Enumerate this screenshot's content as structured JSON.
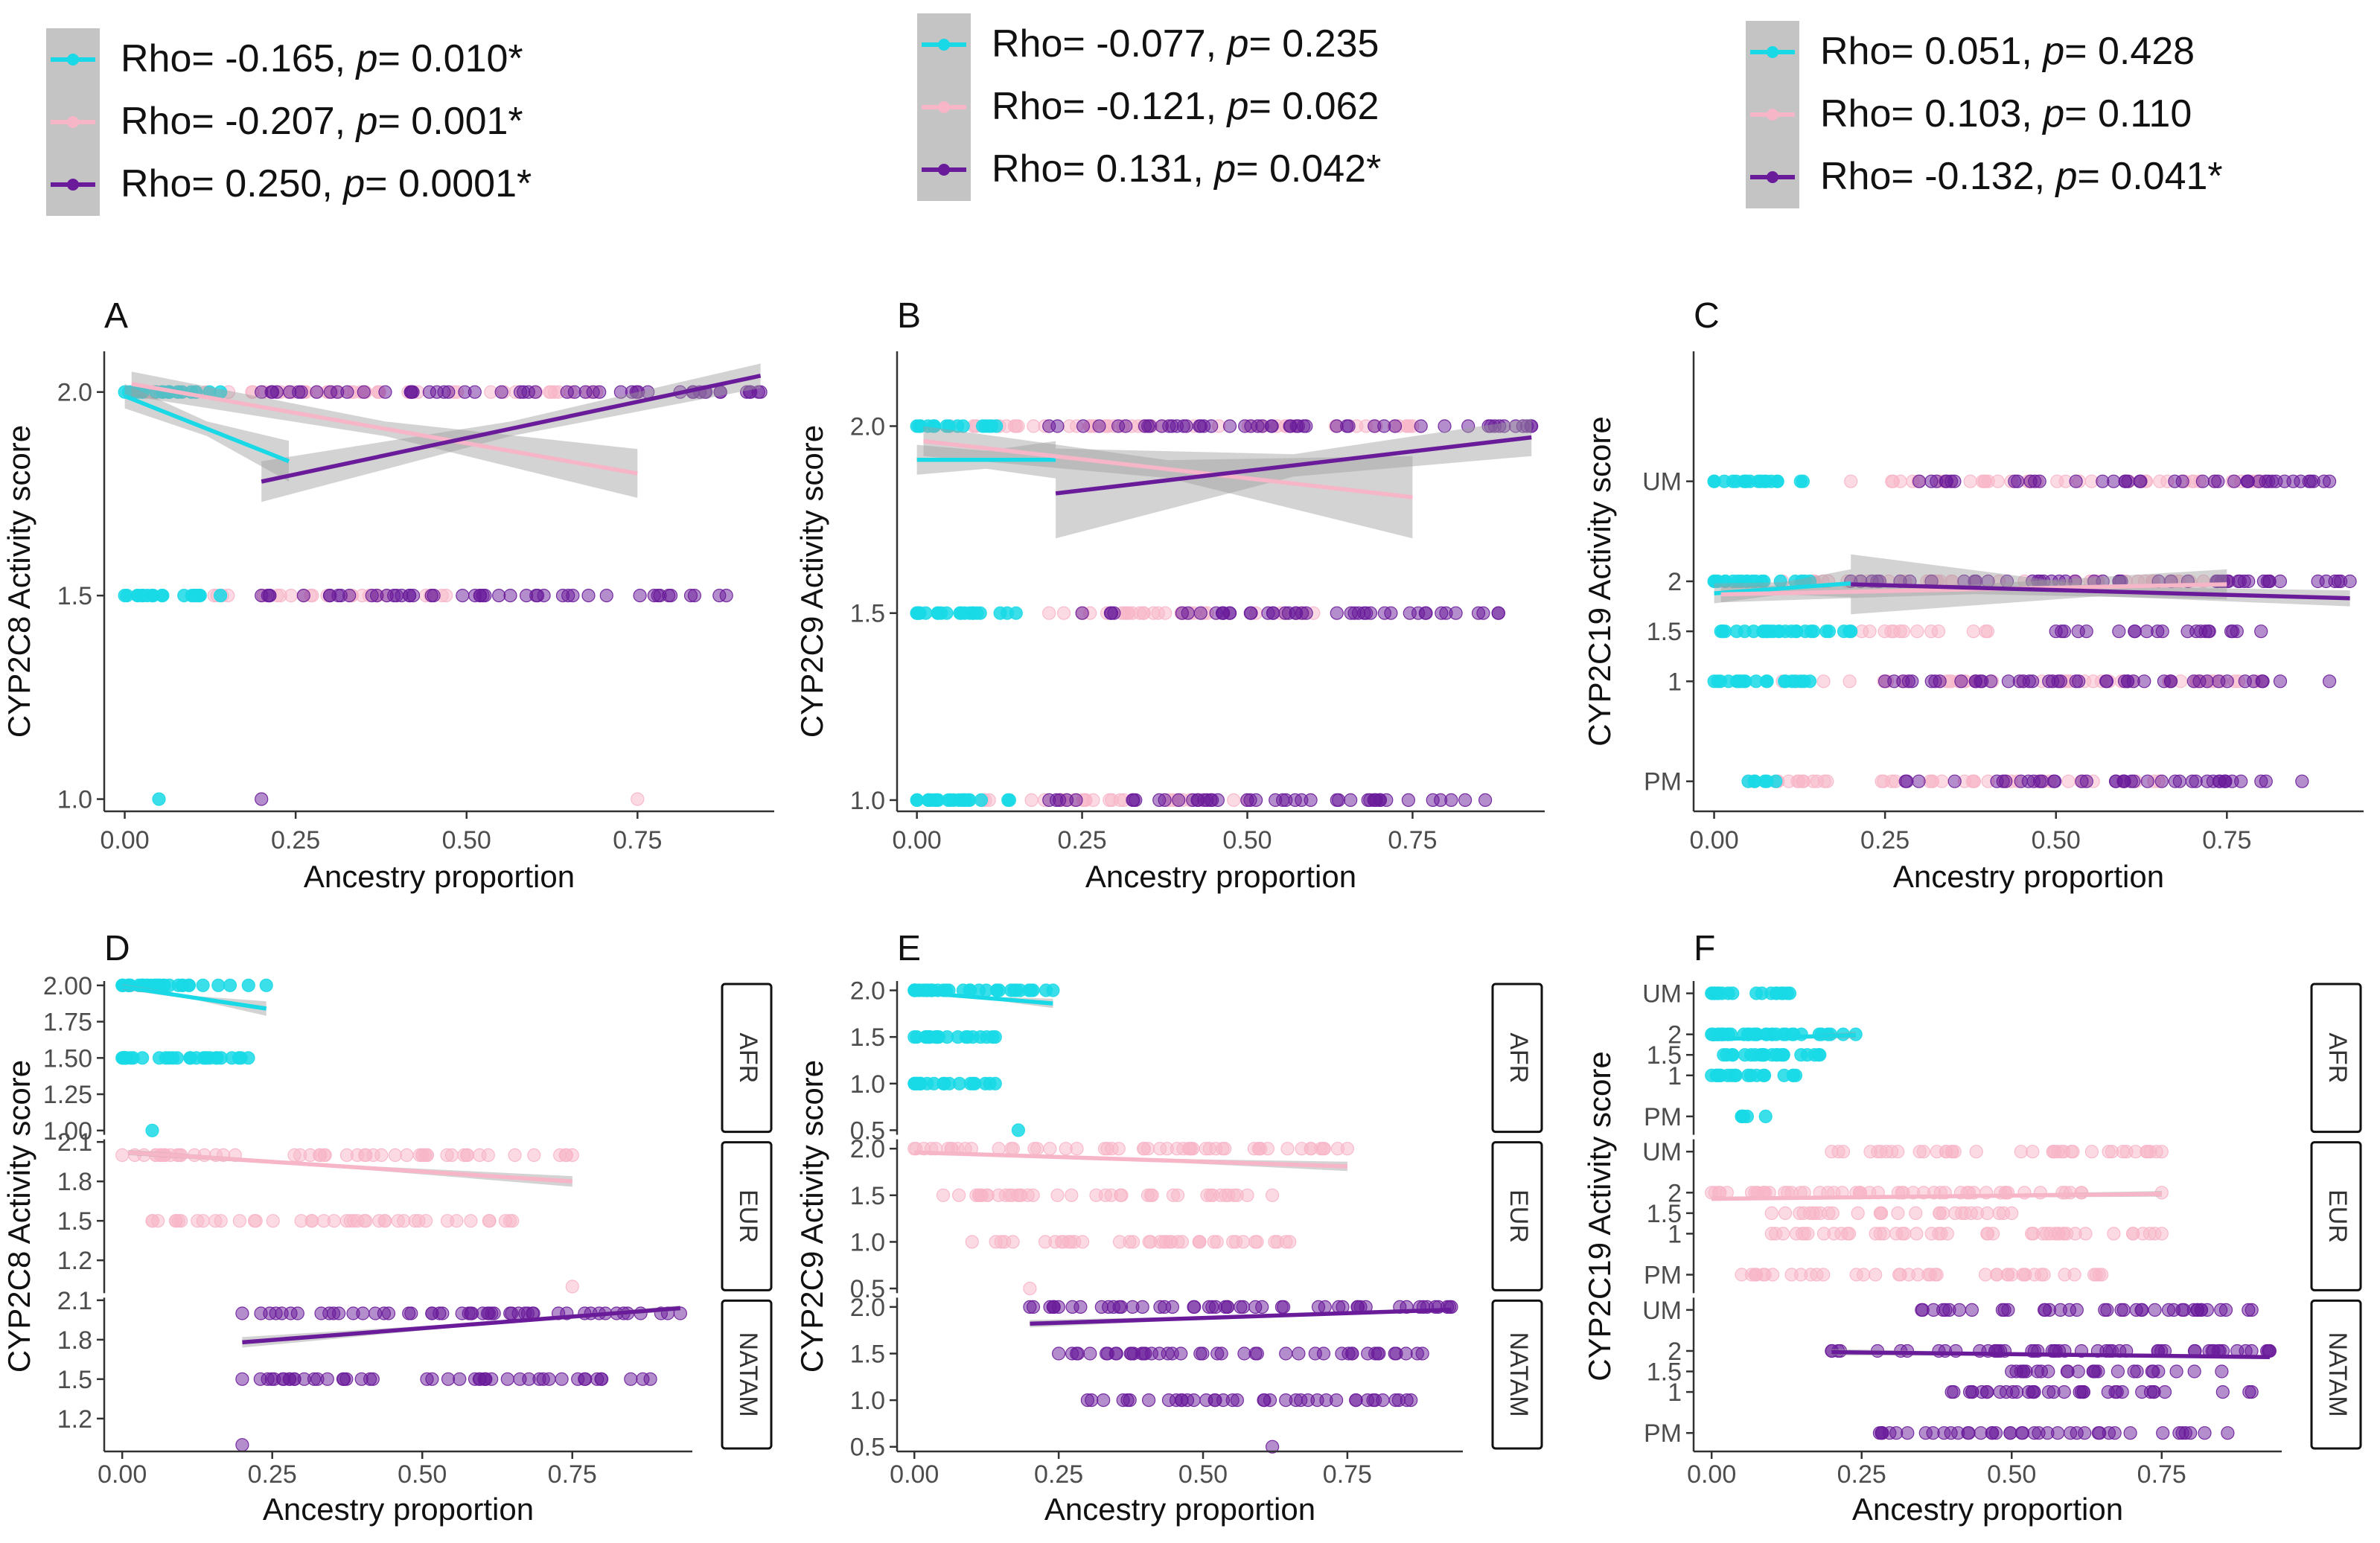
{
  "colors": {
    "afr": "#19d9e6",
    "eur": "#f7b5c8",
    "natam": "#6a1b9a",
    "band": "#c4c4c4",
    "axis": "#333333",
    "tick": "#4d4d4d"
  },
  "legends": [
    {
      "entries": [
        {
          "series": "AFR",
          "prefix": "Rho= -0.165, ",
          "p_label": "p",
          "suffix": "= 0.010*"
        },
        {
          "series": "EUR",
          "prefix": "Rho= -0.207, ",
          "p_label": "p",
          "suffix": "= 0.001*"
        },
        {
          "series": "NATAM",
          "prefix": "Rho= 0.250, ",
          "p_label": "p",
          "suffix": "= 0.0001*"
        }
      ]
    },
    {
      "entries": [
        {
          "series": "AFR",
          "prefix": "Rho= -0.077, ",
          "p_label": "p",
          "suffix": "= 0.235"
        },
        {
          "series": "EUR",
          "prefix": "Rho= -0.121, ",
          "p_label": "p",
          "suffix": "= 0.062"
        },
        {
          "series": "NATAM",
          "prefix": "Rho= 0.131, ",
          "p_label": "p",
          "suffix": "= 0.042*"
        }
      ]
    },
    {
      "entries": [
        {
          "series": "AFR",
          "prefix": "Rho= 0.051, ",
          "p_label": "p",
          "suffix": "= 0.428"
        },
        {
          "series": "EUR",
          "prefix": "Rho= 0.103, ",
          "p_label": "p",
          "suffix": "= 0.110"
        },
        {
          "series": "NATAM",
          "prefix": "Rho= -0.132, ",
          "p_label": "p",
          "suffix": "= 0.041*"
        }
      ]
    }
  ],
  "chart_data": [
    {
      "panel": "A",
      "type": "scatter",
      "xlabel": "Ancestry proportion",
      "ylabel": "CYP2C8 Activity score",
      "xlim": [
        -0.03,
        0.95
      ],
      "xticks": [
        0,
        0.25,
        0.5,
        0.75
      ],
      "xtick_labels": [
        "0.00",
        "0.25",
        "0.50",
        "0.75"
      ],
      "ylim": [
        0.97,
        2.1
      ],
      "yticks": [
        1.0,
        1.5,
        2.0
      ],
      "ytick_labels": [
        "1.0",
        "1.5",
        "2.0"
      ],
      "points": {
        "AFR": {
          "2.0": [
            0,
            0.14
          ],
          "1.5": [
            0,
            0.14
          ],
          "1.0": [
            0.05
          ]
        },
        "EUR": {
          "2.0": [
            0.03,
            0.75
          ],
          "1.5": [
            0.1,
            0.47
          ],
          "1.0": [
            0.75
          ]
        },
        "NATAM": {
          "2.0": [
            0.2,
            0.93
          ],
          "1.5": [
            0.2,
            0.88
          ],
          "1.0": [
            0.2
          ]
        }
      },
      "fits": [
        {
          "series": "AFR",
          "x": [
            0,
            0.24
          ],
          "y": [
            1.99,
            1.83
          ],
          "band": [
            0.03,
            0.05
          ]
        },
        {
          "series": "EUR",
          "x": [
            0.01,
            0.75
          ],
          "y": [
            2.02,
            1.8
          ],
          "band": [
            0.03,
            0.06
          ]
        },
        {
          "series": "NATAM",
          "x": [
            0.2,
            0.93
          ],
          "y": [
            1.78,
            2.04
          ],
          "band": [
            0.05,
            0.03
          ]
        }
      ]
    },
    {
      "panel": "B",
      "type": "scatter",
      "xlabel": "Ancestry proportion",
      "ylabel": "CYP2C9 Activity score",
      "xlim": [
        -0.03,
        0.95
      ],
      "xticks": [
        0,
        0.25,
        0.5,
        0.75
      ],
      "xtick_labels": [
        "0.00",
        "0.25",
        "0.50",
        "0.75"
      ],
      "ylim": [
        0.97,
        2.2
      ],
      "yticks": [
        1.0,
        1.5,
        2.0
      ],
      "ytick_labels": [
        "1.0",
        "1.5",
        "2.0"
      ],
      "points": {
        "AFR": {
          "2.0": [
            0,
            0.12
          ],
          "1.5": [
            0,
            0.15
          ],
          "1.0": [
            0,
            0.14
          ]
        },
        "EUR": {
          "2.0": [
            0.05,
            0.75
          ],
          "1.5": [
            0.2,
            0.6
          ],
          "1.0": [
            0.1,
            0.5
          ]
        },
        "NATAM": {
          "2.0": [
            0.2,
            0.93
          ],
          "1.5": [
            0.25,
            0.88
          ],
          "1.0": [
            0.2,
            0.86
          ]
        }
      },
      "fits": [
        {
          "series": "AFR",
          "x": [
            0,
            0.21
          ],
          "y": [
            1.91,
            1.91
          ],
          "band": [
            0.04,
            0.05
          ]
        },
        {
          "series": "EUR",
          "x": [
            0.01,
            0.75
          ],
          "y": [
            1.96,
            1.81
          ],
          "band": [
            0.04,
            0.11
          ]
        },
        {
          "series": "NATAM",
          "x": [
            0.21,
            0.93
          ],
          "y": [
            1.82,
            1.97
          ],
          "band": [
            0.12,
            0.05
          ]
        }
      ]
    },
    {
      "panel": "C",
      "type": "scatter",
      "xlabel": "Ancestry proportion",
      "ylabel": "CYP2C19 Activity score",
      "xlim": [
        -0.03,
        0.95
      ],
      "xticks": [
        0,
        0.25,
        0.5,
        0.75
      ],
      "xtick_labels": [
        "0.00",
        "0.25",
        "0.50",
        "0.75"
      ],
      "ylim": [
        -0.3,
        4.3
      ],
      "yticks": [
        0,
        1,
        1.5,
        2,
        3
      ],
      "ytick_labels": [
        "PM",
        "1",
        "1.5",
        "2",
        "UM"
      ],
      "points": {
        "AFR": {
          "3": [
            0,
            0.13
          ],
          "2": [
            0,
            0.14
          ],
          "1.5": [
            0.01,
            0.2
          ],
          "1": [
            0,
            0.14
          ],
          "0": [
            0.05,
            0.09
          ]
        },
        "EUR": {
          "3": [
            0.2,
            0.8
          ],
          "2": [
            0.1,
            0.75
          ],
          "1.5": [
            0.2,
            0.4
          ],
          "1": [
            0.1,
            0.8
          ],
          "0": [
            0.05,
            0.65
          ]
        },
        "NATAM": {
          "3": [
            0.3,
            0.9
          ],
          "2": [
            0.2,
            0.93
          ],
          "1.5": [
            0.5,
            0.8
          ],
          "1": [
            0.25,
            0.9
          ],
          "0": [
            0.28,
            0.86
          ]
        }
      },
      "fits": [
        {
          "series": "AFR",
          "x": [
            0,
            0.2
          ],
          "y": [
            1.88,
            1.98
          ],
          "band": [
            0.1,
            0.14
          ]
        },
        {
          "series": "EUR",
          "x": [
            0.01,
            0.75
          ],
          "y": [
            1.87,
            1.97
          ],
          "band": [
            0.08,
            0.15
          ]
        },
        {
          "series": "NATAM",
          "x": [
            0.2,
            0.93
          ],
          "y": [
            1.97,
            1.83
          ],
          "band": [
            0.3,
            0.08
          ]
        }
      ]
    },
    {
      "panel": "D",
      "type": "scatter",
      "xlabel": "Ancestry proportion",
      "ylabel": "CYP2C8 Activity score",
      "xlim": [
        -0.03,
        0.95
      ],
      "xticks": [
        0,
        0.25,
        0.5,
        0.75
      ],
      "xtick_labels": [
        "0.00",
        "0.25",
        "0.50",
        "0.75"
      ],
      "facets": [
        {
          "strip": "AFR",
          "ylim": [
            0.97,
            2.03
          ],
          "yticks": [
            1.0,
            1.25,
            1.5,
            1.75,
            2.0
          ],
          "ytick_labels": [
            "1.00",
            "1.25",
            "1.50",
            "1.75",
            "2.00"
          ],
          "points": {
            "AFR": {
              "2.0": [
                0,
                0.24
              ],
              "1.5": [
                0,
                0.21
              ],
              "1.0": [
                0.05
              ]
            }
          },
          "fits": [
            {
              "series": "AFR",
              "x": [
                0,
                0.24
              ],
              "y": [
                1.99,
                1.84
              ],
              "band": [
                0.02,
                0.05
              ]
            }
          ]
        },
        {
          "strip": "EUR",
          "ylim": [
            0.95,
            2.12
          ],
          "yticks": [
            1.2,
            1.5,
            1.8,
            2.1
          ],
          "ytick_labels": [
            "1.2",
            "1.5",
            "1.8",
            "2.1"
          ],
          "points": {
            "EUR": {
              "2.0": [
                0,
                0.75
              ],
              "1.5": [
                0.05,
                0.65
              ],
              "1.0": [
                0.75
              ]
            }
          },
          "fits": [
            {
              "series": "EUR",
              "x": [
                0.01,
                0.75
              ],
              "y": [
                2.02,
                1.8
              ],
              "band": [
                0.02,
                0.04
              ]
            }
          ]
        },
        {
          "strip": "NATAM",
          "ylim": [
            0.95,
            2.12
          ],
          "yticks": [
            1.2,
            1.5,
            1.8,
            2.1
          ],
          "ytick_labels": [
            "1.2",
            "1.5",
            "1.8",
            "2.1"
          ],
          "points": {
            "NATAM": {
              "2.0": [
                0.2,
                0.93
              ],
              "1.5": [
                0.2,
                0.88
              ],
              "1.0": [
                0.2
              ]
            }
          },
          "fits": [
            {
              "series": "NATAM",
              "x": [
                0.2,
                0.93
              ],
              "y": [
                1.78,
                2.04
              ],
              "band": [
                0.04,
                0.02
              ]
            }
          ]
        }
      ]
    },
    {
      "panel": "E",
      "type": "scatter",
      "xlabel": "Ancestry proportion",
      "ylabel": "CYP2C9 Activity score",
      "xlim": [
        -0.03,
        0.95
      ],
      "xticks": [
        0,
        0.25,
        0.5,
        0.75
      ],
      "xtick_labels": [
        "0.00",
        "0.25",
        "0.50",
        "0.75"
      ],
      "facets": [
        {
          "strip": "AFR",
          "ylim": [
            0.45,
            2.1
          ],
          "yticks": [
            0.5,
            1.0,
            1.5,
            2.0
          ],
          "ytick_labels": [
            "0.5",
            "1.0",
            "1.5",
            "2.0"
          ],
          "points": {
            "AFR": {
              "2.0": [
                0,
                0.24
              ],
              "1.5": [
                0,
                0.14
              ],
              "1.0": [
                0,
                0.14
              ],
              "0.5": [
                0.18
              ]
            }
          },
          "fits": [
            {
              "series": "AFR",
              "x": [
                0,
                0.24
              ],
              "y": [
                1.98,
                1.86
              ],
              "band": [
                0.02,
                0.05
              ]
            }
          ]
        },
        {
          "strip": "EUR",
          "ylim": [
            0.45,
            2.1
          ],
          "yticks": [
            0.5,
            1.0,
            1.5,
            2.0
          ],
          "ytick_labels": [
            "0.5",
            "1.0",
            "1.5",
            "2.0"
          ],
          "points": {
            "EUR": {
              "2.0": [
                0,
                0.75
              ],
              "1.5": [
                0.05,
                0.62
              ],
              "1.0": [
                0.1,
                0.65
              ],
              "0.5": [
                0.2
              ]
            }
          },
          "fits": [
            {
              "series": "EUR",
              "x": [
                0,
                0.75
              ],
              "y": [
                1.96,
                1.81
              ],
              "band": [
                0.02,
                0.05
              ]
            }
          ]
        },
        {
          "strip": "NATAM",
          "ylim": [
            0.45,
            2.1
          ],
          "yticks": [
            0.5,
            1.0,
            1.5,
            2.0
          ],
          "ytick_labels": [
            "0.5",
            "1.0",
            "1.5",
            "2.0"
          ],
          "points": {
            "NATAM": {
              "2.0": [
                0.2,
                0.93
              ],
              "1.5": [
                0.25,
                0.88
              ],
              "1.0": [
                0.3,
                0.86
              ],
              "0.5": [
                0.62
              ]
            }
          },
          "fits": [
            {
              "series": "NATAM",
              "x": [
                0.2,
                0.93
              ],
              "y": [
                1.82,
                1.97
              ],
              "band": [
                0.04,
                0.02
              ]
            }
          ]
        }
      ]
    },
    {
      "panel": "F",
      "type": "scatter",
      "xlabel": "Ancestry proportion",
      "ylabel": "CYP2C19 Activity score",
      "xlim": [
        -0.03,
        0.95
      ],
      "xticks": [
        0,
        0.25,
        0.5,
        0.75
      ],
      "xtick_labels": [
        "0.00",
        "0.25",
        "0.50",
        "0.75"
      ],
      "facets": [
        {
          "strip": "AFR",
          "ylim": [
            -0.45,
            3.3
          ],
          "yticks": [
            0,
            1,
            1.5,
            2,
            3
          ],
          "ytick_labels": [
            "PM",
            "1",
            "1.5",
            "2",
            "UM"
          ],
          "points": {
            "AFR": {
              "3": [
                0,
                0.13
              ],
              "2": [
                0,
                0.24
              ],
              "1.5": [
                0.02,
                0.18
              ],
              "1": [
                0,
                0.14
              ],
              "0": [
                0.05,
                0.09
              ]
            }
          },
          "fits": [
            {
              "series": "AFR",
              "x": [
                0,
                0.24
              ],
              "y": [
                1.88,
                1.98
              ],
              "band": [
                0.05,
                0.08
              ]
            }
          ]
        },
        {
          "strip": "EUR",
          "ylim": [
            -0.45,
            3.3
          ],
          "yticks": [
            0,
            1,
            1.5,
            2,
            3
          ],
          "ytick_labels": [
            "PM",
            "1",
            "1.5",
            "2",
            "UM"
          ],
          "points": {
            "EUR": {
              "3": [
                0.2,
                0.75
              ],
              "2": [
                0,
                0.75
              ],
              "1.5": [
                0.1,
                0.5
              ],
              "1": [
                0.1,
                0.75
              ],
              "0": [
                0.05,
                0.65
              ]
            }
          },
          "fits": [
            {
              "series": "EUR",
              "x": [
                0,
                0.75
              ],
              "y": [
                1.85,
                1.97
              ],
              "band": [
                0.05,
                0.07
              ]
            }
          ]
        },
        {
          "strip": "NATAM",
          "ylim": [
            -0.45,
            3.3
          ],
          "yticks": [
            0,
            1,
            1.5,
            2,
            3
          ],
          "ytick_labels": [
            "PM",
            "1",
            "1.5",
            "2",
            "UM"
          ],
          "points": {
            "NATAM": {
              "3": [
                0.35,
                0.9
              ],
              "2": [
                0.2,
                0.93
              ],
              "1.5": [
                0.5,
                0.85
              ],
              "1": [
                0.4,
                0.9
              ],
              "0": [
                0.28,
                0.86
              ]
            }
          },
          "fits": [
            {
              "series": "NATAM",
              "x": [
                0.2,
                0.93
              ],
              "y": [
                1.97,
                1.85
              ],
              "band": [
                0.08,
                0.04
              ]
            }
          ]
        }
      ]
    }
  ]
}
